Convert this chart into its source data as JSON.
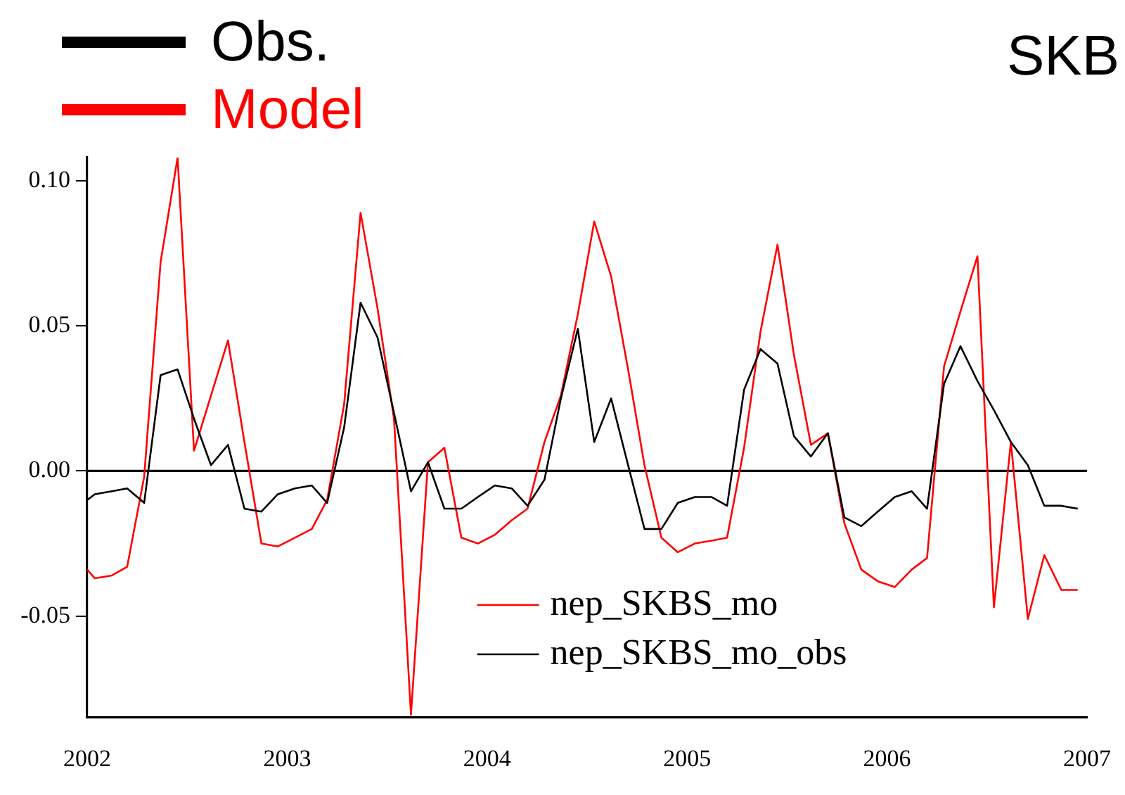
{
  "chart_data": {
    "type": "line",
    "title": "SKB",
    "annotations": [
      "Obs.",
      "Model"
    ],
    "x": [
      "2002-01-01",
      "2002-01-15",
      "2002-02-15",
      "2002-03-15",
      "2002-04-15",
      "2002-05-15",
      "2002-06-15",
      "2002-07-15",
      "2002-08-15",
      "2002-09-15",
      "2002-10-15",
      "2002-11-15",
      "2002-12-15",
      "2003-01-15",
      "2003-02-15",
      "2003-03-15",
      "2003-04-15",
      "2003-05-15",
      "2003-06-15",
      "2003-07-15",
      "2003-08-15",
      "2003-09-15",
      "2003-10-15",
      "2003-11-15",
      "2003-12-15",
      "2004-01-15",
      "2004-02-15",
      "2004-03-15",
      "2004-04-15",
      "2004-05-15",
      "2004-06-15",
      "2004-07-15",
      "2004-08-15",
      "2004-09-15",
      "2004-10-15",
      "2004-11-15",
      "2004-12-15",
      "2005-01-15",
      "2005-02-15",
      "2005-03-15",
      "2005-04-15",
      "2005-05-15",
      "2005-06-15",
      "2005-07-15",
      "2005-08-15",
      "2005-09-15",
      "2005-10-15",
      "2005-11-15",
      "2005-12-15",
      "2006-01-15",
      "2006-02-15",
      "2006-03-15",
      "2006-04-15",
      "2006-05-15",
      "2006-06-15",
      "2006-07-15",
      "2006-08-15",
      "2006-09-15",
      "2006-10-15",
      "2006-11-15",
      "2006-12-15"
    ],
    "series": [
      {
        "name": "nep_SKBS_mo",
        "color": "#ff0000",
        "values": [
          -0.034,
          -0.037,
          -0.036,
          -0.033,
          -0.002,
          0.072,
          0.108,
          0.007,
          0.026,
          0.045,
          0.01,
          -0.025,
          -0.026,
          -0.023,
          -0.02,
          -0.01,
          0.023,
          0.089,
          0.056,
          0.018,
          -0.084,
          0.003,
          0.008,
          -0.023,
          -0.025,
          -0.022,
          -0.017,
          -0.013,
          0.01,
          0.026,
          0.054,
          0.086,
          0.067,
          0.035,
          0.002,
          -0.023,
          -0.028,
          -0.025,
          -0.024,
          -0.023,
          0.008,
          0.048,
          0.078,
          0.04,
          0.009,
          0.013,
          -0.018,
          -0.034,
          -0.038,
          -0.04,
          -0.034,
          -0.03,
          0.036,
          0.055,
          0.074,
          -0.047,
          0.01,
          -0.051,
          -0.029,
          -0.041,
          -0.041
        ]
      },
      {
        "name": "nep_SKBS_mo_obs",
        "color": "#000000",
        "values": [
          -0.01,
          -0.008,
          -0.007,
          -0.006,
          -0.011,
          0.033,
          0.035,
          0.018,
          0.002,
          0.009,
          -0.013,
          -0.014,
          -0.008,
          -0.006,
          -0.005,
          -0.011,
          0.015,
          0.058,
          0.046,
          0.02,
          -0.007,
          0.003,
          -0.013,
          -0.013,
          -0.009,
          -0.005,
          -0.006,
          -0.012,
          -0.003,
          0.025,
          0.049,
          0.01,
          0.025,
          0.002,
          -0.02,
          -0.02,
          -0.011,
          -0.009,
          -0.009,
          -0.012,
          0.028,
          0.042,
          0.037,
          0.012,
          0.005,
          0.013,
          -0.016,
          -0.019,
          -0.014,
          -0.009,
          -0.007,
          -0.013,
          0.03,
          0.043,
          0.031,
          0.021,
          0.01,
          0.002,
          -0.012,
          -0.012,
          -0.013
        ]
      }
    ],
    "xlim": [
      "2002",
      "2007"
    ],
    "xticks": [
      "2002",
      "2003",
      "2004",
      "2005",
      "2006",
      "2007"
    ],
    "ylim": [
      -0.085,
      0.108
    ],
    "yticks": [
      {
        "value": -0.05,
        "label": "-0.05"
      },
      {
        "value": 0,
        "label": "0.00"
      },
      {
        "value": 0.05,
        "label": "0.05"
      },
      {
        "value": 0.1,
        "label": "0.10"
      }
    ],
    "ref_lines": [
      {
        "axis": "y",
        "value": 0,
        "color": "#000000"
      }
    ],
    "grid": false,
    "legend": "bottom",
    "marker": "none",
    "line_style": "solid"
  }
}
